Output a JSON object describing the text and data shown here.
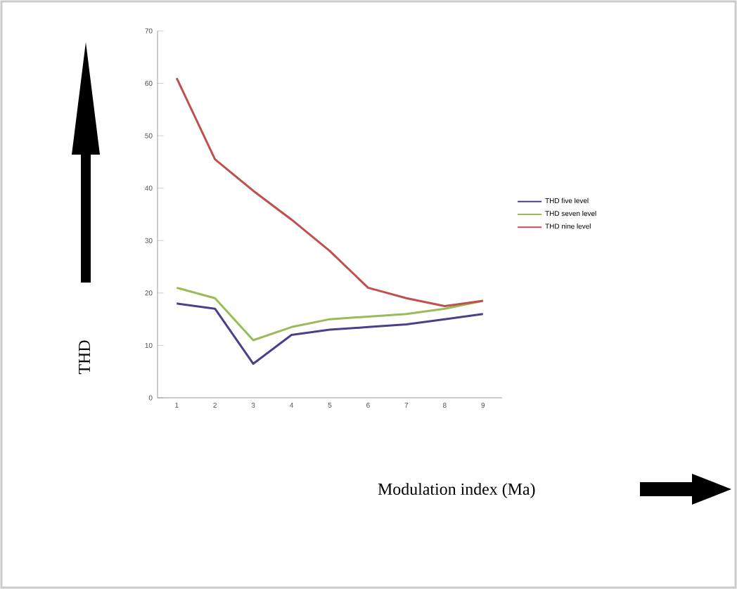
{
  "chart_data": {
    "type": "line",
    "xlabel": "Modulation index (Ma)",
    "ylabel": "THD",
    "categories": [
      "1",
      "2",
      "3",
      "4",
      "5",
      "6",
      "7",
      "8",
      "9"
    ],
    "series": [
      {
        "name": "THD five level",
        "color": "#4b3f8c",
        "values": [
          18,
          17,
          6.5,
          12,
          13,
          13.5,
          14,
          15,
          16
        ]
      },
      {
        "name": "THD seven level",
        "color": "#9bbb59",
        "values": [
          21,
          19,
          11,
          13.5,
          15,
          15.5,
          16,
          17,
          18.5
        ]
      },
      {
        "name": "THD nine level",
        "color": "#c0504d",
        "values": [
          61,
          45.5,
          39.5,
          34,
          28,
          21,
          19,
          17.5,
          18.5
        ]
      }
    ],
    "ylim": [
      0,
      70
    ],
    "yticks": [
      0,
      10,
      20,
      30,
      40,
      50,
      60,
      70
    ],
    "grid": false,
    "legend": "right",
    "marker": "none",
    "line_style": "solid"
  }
}
